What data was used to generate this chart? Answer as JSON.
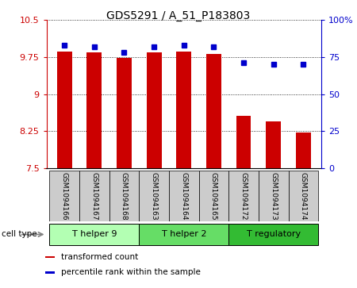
{
  "title": "GDS5291 / A_51_P183803",
  "samples": [
    "GSM1094166",
    "GSM1094167",
    "GSM1094168",
    "GSM1094163",
    "GSM1094164",
    "GSM1094165",
    "GSM1094172",
    "GSM1094173",
    "GSM1094174"
  ],
  "transformed_counts": [
    9.87,
    9.85,
    9.73,
    9.84,
    9.87,
    9.82,
    8.55,
    8.45,
    8.22
  ],
  "percentile_ranks": [
    83,
    82,
    78,
    82,
    83,
    82,
    71,
    70,
    70
  ],
  "ylim_left": [
    7.5,
    10.5
  ],
  "ylim_right": [
    0,
    100
  ],
  "yticks_left": [
    7.5,
    8.25,
    9.0,
    9.75,
    10.5
  ],
  "ytick_labels_left": [
    "7.5",
    "8.25",
    "9",
    "9.75",
    "10.5"
  ],
  "yticks_right": [
    0,
    25,
    50,
    75,
    100
  ],
  "ytick_labels_right": [
    "0",
    "25",
    "50",
    "75",
    "100%"
  ],
  "bar_color": "#cc0000",
  "dot_color": "#0000cc",
  "bar_bottom": 7.5,
  "cell_types": [
    {
      "label": "T helper 9",
      "start": 0,
      "end": 3,
      "color": "#b3ffb3"
    },
    {
      "label": "T helper 2",
      "start": 3,
      "end": 6,
      "color": "#66dd66"
    },
    {
      "label": "T regulatory",
      "start": 6,
      "end": 9,
      "color": "#33bb33"
    }
  ],
  "legend_items": [
    {
      "label": "transformed count",
      "color": "#cc0000"
    },
    {
      "label": "percentile rank within the sample",
      "color": "#0000cc"
    }
  ],
  "label_area_bg": "#cccccc",
  "cell_type_label": "cell type"
}
